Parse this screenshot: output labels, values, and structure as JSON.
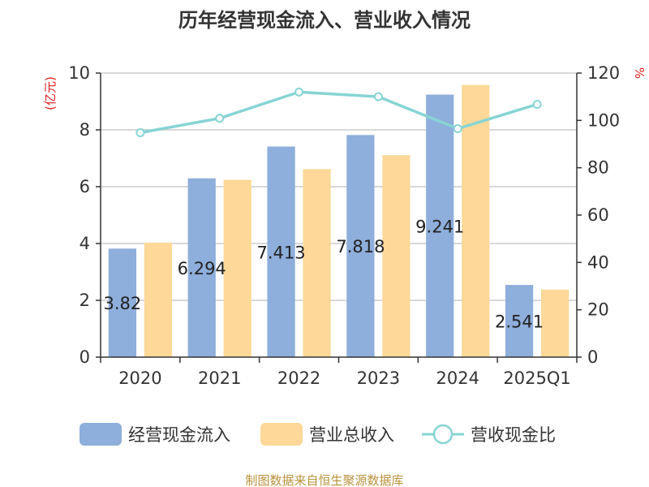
{
  "chart_data": {
    "type": "bar",
    "title": "历年经营现金流入、营业收入情况",
    "categories": [
      "2020",
      "2021",
      "2022",
      "2023",
      "2024",
      "2025Q1"
    ],
    "left_axis": {
      "unit": "(亿元)",
      "ylim": [
        0,
        10
      ],
      "ticks": [
        0,
        2,
        4,
        6,
        8,
        10
      ]
    },
    "right_axis": {
      "unit": "%",
      "ylim": [
        0,
        120
      ],
      "ticks": [
        0,
        20,
        40,
        60,
        80,
        100,
        120
      ]
    },
    "series": [
      {
        "name": "经营现金流入",
        "kind": "bar",
        "axis": "left",
        "color": "#8eaedb",
        "values": [
          3.82,
          6.294,
          7.413,
          7.818,
          9.241,
          2.541
        ],
        "labels": [
          "3.82",
          "6.294",
          "7.413",
          "7.818",
          "9.241",
          "2.541"
        ]
      },
      {
        "name": "营业总收入",
        "kind": "bar",
        "axis": "left",
        "color": "#fdd898",
        "values": [
          4.03,
          6.24,
          6.62,
          7.11,
          9.58,
          2.38
        ]
      },
      {
        "name": "营收现金比",
        "kind": "line",
        "axis": "right",
        "color": "#88d4d4",
        "values": [
          94.8,
          100.9,
          112.0,
          110.0,
          96.5,
          106.8
        ]
      }
    ],
    "grid": true,
    "legend": "bottom"
  },
  "source": "制图数据来自恒生聚源数据库"
}
